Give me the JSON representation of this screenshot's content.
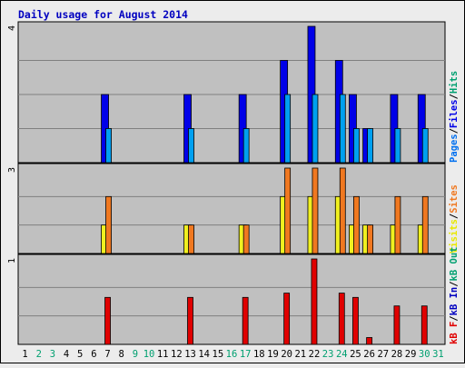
{
  "chart_data": {
    "type": "bar",
    "title": "Daily usage for August 2014",
    "colors": {
      "background": "#ECECEC",
      "panel": "#C0C0C0",
      "title": "#0000C0",
      "pages": "#0000E8",
      "files": "#0070F0",
      "hits": "#00A0F0",
      "visits": "#F0F020",
      "sites": "#F07820",
      "kb_out": "#00A070",
      "kb_in": "#0000C0",
      "kb_f": "#E00000",
      "weekend_day": "#00A070",
      "weekday": "#000000"
    },
    "days": [
      "1",
      "2",
      "3",
      "4",
      "5",
      "6",
      "7",
      "8",
      "9",
      "10",
      "11",
      "12",
      "13",
      "14",
      "15",
      "16",
      "17",
      "18",
      "19",
      "20",
      "21",
      "22",
      "23",
      "24",
      "25",
      "26",
      "27",
      "28",
      "29",
      "30",
      "31"
    ],
    "weekend_days": [
      "2",
      "3",
      "9",
      "10",
      "16",
      "17",
      "23",
      "24",
      "30",
      "31"
    ],
    "panels": [
      {
        "name": "hits-files-pages",
        "ymax": 4,
        "ymax_label": "4",
        "legend": [
          {
            "text": "Pages",
            "color": "#0070F0"
          },
          {
            "text": "/",
            "color": "#000000"
          },
          {
            "text": "Files",
            "color": "#0000E8"
          },
          {
            "text": "/",
            "color": "#000000"
          },
          {
            "text": "Hits",
            "color": "#00A070"
          }
        ],
        "series": [
          {
            "name": "Hits",
            "color": "#0000E8",
            "values": [
              0,
              0,
              0,
              0,
              0,
              0,
              2,
              0,
              0,
              0,
              0,
              0,
              2,
              0,
              0,
              0,
              2,
              0,
              0,
              3,
              0,
              4,
              0,
              3,
              2,
              1,
              0,
              2,
              0,
              2,
              0
            ]
          },
          {
            "name": "Files",
            "color": "#00A0F0",
            "values": [
              0,
              0,
              0,
              0,
              0,
              0,
              1,
              0,
              0,
              0,
              0,
              0,
              1,
              0,
              0,
              0,
              1,
              0,
              0,
              2,
              0,
              2,
              0,
              2,
              1,
              1,
              0,
              1,
              0,
              1,
              0
            ]
          },
          {
            "name": "Pages",
            "color": "#0070F0",
            "values": [
              0,
              0,
              0,
              0,
              0,
              0,
              0,
              0,
              0,
              0,
              0,
              0,
              0,
              0,
              0,
              0,
              0,
              0,
              0,
              0,
              0,
              0,
              0,
              0,
              0,
              0,
              0,
              0,
              0,
              0,
              0
            ]
          }
        ]
      },
      {
        "name": "visits-sites",
        "ymax": 3,
        "ymax_label": "3",
        "legend": [
          {
            "text": "Visits",
            "color": "#E8E800"
          },
          {
            "text": "/",
            "color": "#000000"
          },
          {
            "text": "Sites",
            "color": "#F07820"
          }
        ],
        "series": [
          {
            "name": "Visits",
            "color": "#F0F020",
            "values": [
              0,
              0,
              0,
              0,
              0,
              0,
              1,
              0,
              0,
              0,
              0,
              0,
              1,
              0,
              0,
              0,
              1,
              0,
              0,
              2,
              0,
              2,
              0,
              2,
              1,
              1,
              0,
              1,
              0,
              1,
              0
            ]
          },
          {
            "name": "Sites",
            "color": "#F07820",
            "values": [
              0,
              0,
              0,
              0,
              0,
              0,
              2,
              0,
              0,
              0,
              0,
              0,
              1,
              0,
              0,
              0,
              1,
              0,
              0,
              3,
              0,
              3,
              0,
              3,
              2,
              1,
              0,
              2,
              0,
              2,
              0
            ]
          }
        ]
      },
      {
        "name": "kbytes",
        "ymax": 1,
        "ymax_label": "1",
        "legend": [
          {
            "text": "kB F",
            "color": "#E00000"
          },
          {
            "text": "/",
            "color": "#000000"
          },
          {
            "text": "kB In",
            "color": "#0000C0"
          },
          {
            "text": "/",
            "color": "#000000"
          },
          {
            "text": "kB Out",
            "color": "#00A070"
          }
        ],
        "series": [
          {
            "name": "kB F",
            "color": "#E00000",
            "values": [
              0,
              0,
              0,
              0,
              0,
              0,
              0.55,
              0,
              0,
              0,
              0,
              0,
              0.55,
              0,
              0,
              0,
              0.55,
              0,
              0,
              0.6,
              0,
              1,
              0,
              0.6,
              0.55,
              0.08,
              0,
              0.45,
              0,
              0.45,
              0
            ]
          }
        ]
      }
    ]
  }
}
